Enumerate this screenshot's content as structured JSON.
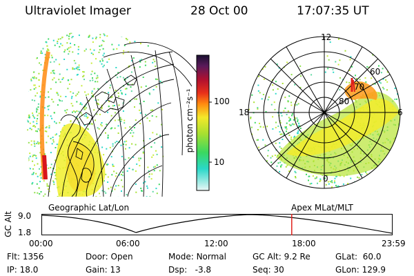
{
  "header": {
    "instrument": "Ultraviolet Imager",
    "date": "28 Oct 00",
    "time": "17:07:35 UT"
  },
  "colorbar": {
    "unit_label": "photon cm⁻²s⁻¹",
    "ticks": [
      "100",
      "10"
    ]
  },
  "polar_plot": {
    "mlt_labels": [
      "12",
      "18",
      "6",
      "0"
    ],
    "mlat_labels": [
      "60",
      "70",
      "80"
    ]
  },
  "projections": {
    "left": "Geographic Lat/Lon",
    "right": "Apex MLat/MLT"
  },
  "timeline": {
    "axis_label": "GC Alt",
    "y_ticks": [
      "9.0",
      "1.8"
    ],
    "x_ticks": [
      "00:00",
      "06:00",
      "12:00",
      "18:00",
      "23:59"
    ],
    "current_time_fraction": 0.7136
  },
  "status": {
    "flt_label": "Flt:",
    "flt_value": "1356",
    "ip_label": "IP:",
    "ip_value": "18.0",
    "door_label": "Door:",
    "door_value": "Open",
    "gain_label": "Gain:",
    "gain_value": "13",
    "mode_label": "Mode:",
    "mode_value": "Normal",
    "dsp_label": "Dsp:",
    "dsp_value": "-3.8",
    "gcalt_label": "GC Alt:",
    "gcalt_value": "9.2 Re",
    "seq_label": "Seq:",
    "seq_value": "30",
    "glat_label": "GLat:",
    "glat_value": "60.0",
    "glon_label": "GLon:",
    "glon_value": "129.9"
  },
  "colors": {
    "marker": "#e0201c",
    "grid": "#000000"
  }
}
